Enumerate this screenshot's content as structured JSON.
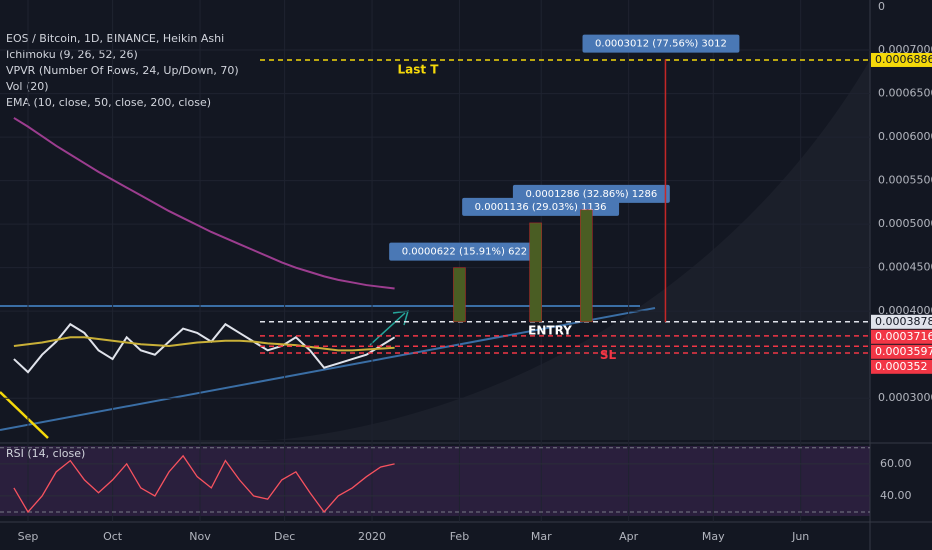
{
  "chart_data": [
    {
      "type": "line",
      "title": "EOS / Bitcoin, 1D, BINANCE, Heikin Ashi",
      "legend_lines": [
        "Ichimoku (9, 26, 52, 26)",
        "VPVR (Number Of Rows, 24, Up/Down, 70)",
        "Vol (20)",
        "EMA (10, close, 50, close, 200, close)"
      ],
      "corner_label": "0",
      "x": [
        -5,
        0,
        5,
        10,
        15,
        20,
        25,
        30,
        35,
        40,
        45,
        50,
        55,
        60,
        65,
        70,
        75,
        80,
        85,
        90,
        95,
        100,
        105,
        110,
        115,
        120,
        125,
        130
      ],
      "series": [
        {
          "color": "#e0e3eb",
          "values": [
            0.000345,
            0.00033,
            0.00035,
            0.000365,
            0.000385,
            0.000375,
            0.000355,
            0.000345,
            0.00037,
            0.000355,
            0.00035,
            0.000365,
            0.00038,
            0.000375,
            0.000365,
            0.000385,
            0.000375,
            0.000365,
            0.000355,
            0.00036,
            0.00037,
            0.000355,
            0.000335,
            0.00034,
            0.000345,
            0.00035,
            0.00036,
            0.00037
          ]
        },
        {
          "color": "#c9b038",
          "values": [
            0.00036,
            0.000362,
            0.000364,
            0.000367,
            0.00037,
            0.00037,
            0.000368,
            0.000366,
            0.000364,
            0.000362,
            0.000361,
            0.00036,
            0.000362,
            0.000364,
            0.000365,
            0.000366,
            0.000366,
            0.000365,
            0.000363,
            0.000362,
            0.000361,
            0.000359,
            0.000357,
            0.000355,
            0.000355,
            0.000356,
            0.000357,
            0.000358
          ]
        },
        {
          "color": "#9c3d8f",
          "values": [
            0.000622,
            0.000612,
            0.000601,
            0.00059,
            0.00058,
            0.00057,
            0.00056,
            0.000551,
            0.000542,
            0.000533,
            0.000524,
            0.000515,
            0.000507,
            0.000499,
            0.000491,
            0.000484,
            0.000477,
            0.00047,
            0.000463,
            0.000456,
            0.00045,
            0.000445,
            0.00044,
            0.000436,
            0.000433,
            0.00043,
            0.000428,
            0.000426
          ]
        }
      ],
      "xlim": [
        -10,
        300
      ],
      "xticks": [
        {
          "value": 0,
          "label": "Sep"
        },
        {
          "value": 30,
          "label": "Oct"
        },
        {
          "value": 61,
          "label": "Nov"
        },
        {
          "value": 91,
          "label": "Dec"
        },
        {
          "value": 122,
          "label": "2020"
        },
        {
          "value": 153,
          "label": "Feb"
        },
        {
          "value": 182,
          "label": "Mar"
        },
        {
          "value": 213,
          "label": "Apr"
        },
        {
          "value": 243,
          "label": "May"
        },
        {
          "value": 274,
          "label": "Jun"
        }
      ],
      "ylim": [
        0.000252,
        0.0007575
      ],
      "yticks": [
        {
          "value": 0.0003,
          "label": "0.0003000"
        },
        {
          "value": 0.0004,
          "label": "0.0004000"
        },
        {
          "value": 0.00045,
          "label": "0.0004500"
        },
        {
          "value": 0.0005,
          "label": "0.0005000"
        },
        {
          "value": 0.00055,
          "label": "0.0005500"
        },
        {
          "value": 0.0006,
          "label": "0.0006000"
        },
        {
          "value": 0.00065,
          "label": "0.0006500"
        },
        {
          "value": 0.0007,
          "label": "0.0007000"
        }
      ],
      "levels": [
        {
          "value": 0.0006886,
          "color": "#f5d90a",
          "note": "Last T"
        },
        {
          "value": 0.0003878,
          "color": "#e0e3eb",
          "note": "ENTRY"
        },
        {
          "value": 0.0003716,
          "color": "#f23645"
        },
        {
          "value": 0.0003597,
          "color": "#f23645",
          "note": "SL"
        },
        {
          "value": 0.000352,
          "color": "#f23645"
        }
      ],
      "targets": [
        {
          "x": 153,
          "value": 6.22e-05,
          "label": "0.0000622 (15.91%) 622"
        },
        {
          "x": 180,
          "value": 0.0001136,
          "label": "0.0001136 (29.03%) 1136"
        },
        {
          "x": 198,
          "value": 0.0001286,
          "label": "0.0001286 (32.86%) 1286"
        },
        {
          "x": 228,
          "value": 0.0003012,
          "label": "0.0003012 (77.56%) 3012"
        }
      ]
    },
    {
      "type": "line",
      "title": "RSI (14, close)",
      "x": [
        -5,
        0,
        5,
        10,
        15,
        20,
        25,
        30,
        35,
        40,
        45,
        50,
        55,
        60,
        65,
        70,
        75,
        80,
        85,
        90,
        95,
        100,
        105,
        110,
        115,
        120,
        125,
        130
      ],
      "series": [
        {
          "color": "#f7525f",
          "values": [
            45,
            30,
            40,
            55,
            62,
            50,
            42,
            50,
            60,
            45,
            40,
            55,
            65,
            52,
            45,
            62,
            50,
            40,
            38,
            50,
            55,
            42,
            30,
            40,
            45,
            52,
            58,
            60
          ]
        }
      ],
      "ylim": [
        25,
        70.5
      ],
      "yticks": [
        {
          "value": 40,
          "label": "40.00"
        },
        {
          "value": 60,
          "label": "60.00"
        }
      ],
      "bands": [
        70,
        30
      ]
    }
  ]
}
